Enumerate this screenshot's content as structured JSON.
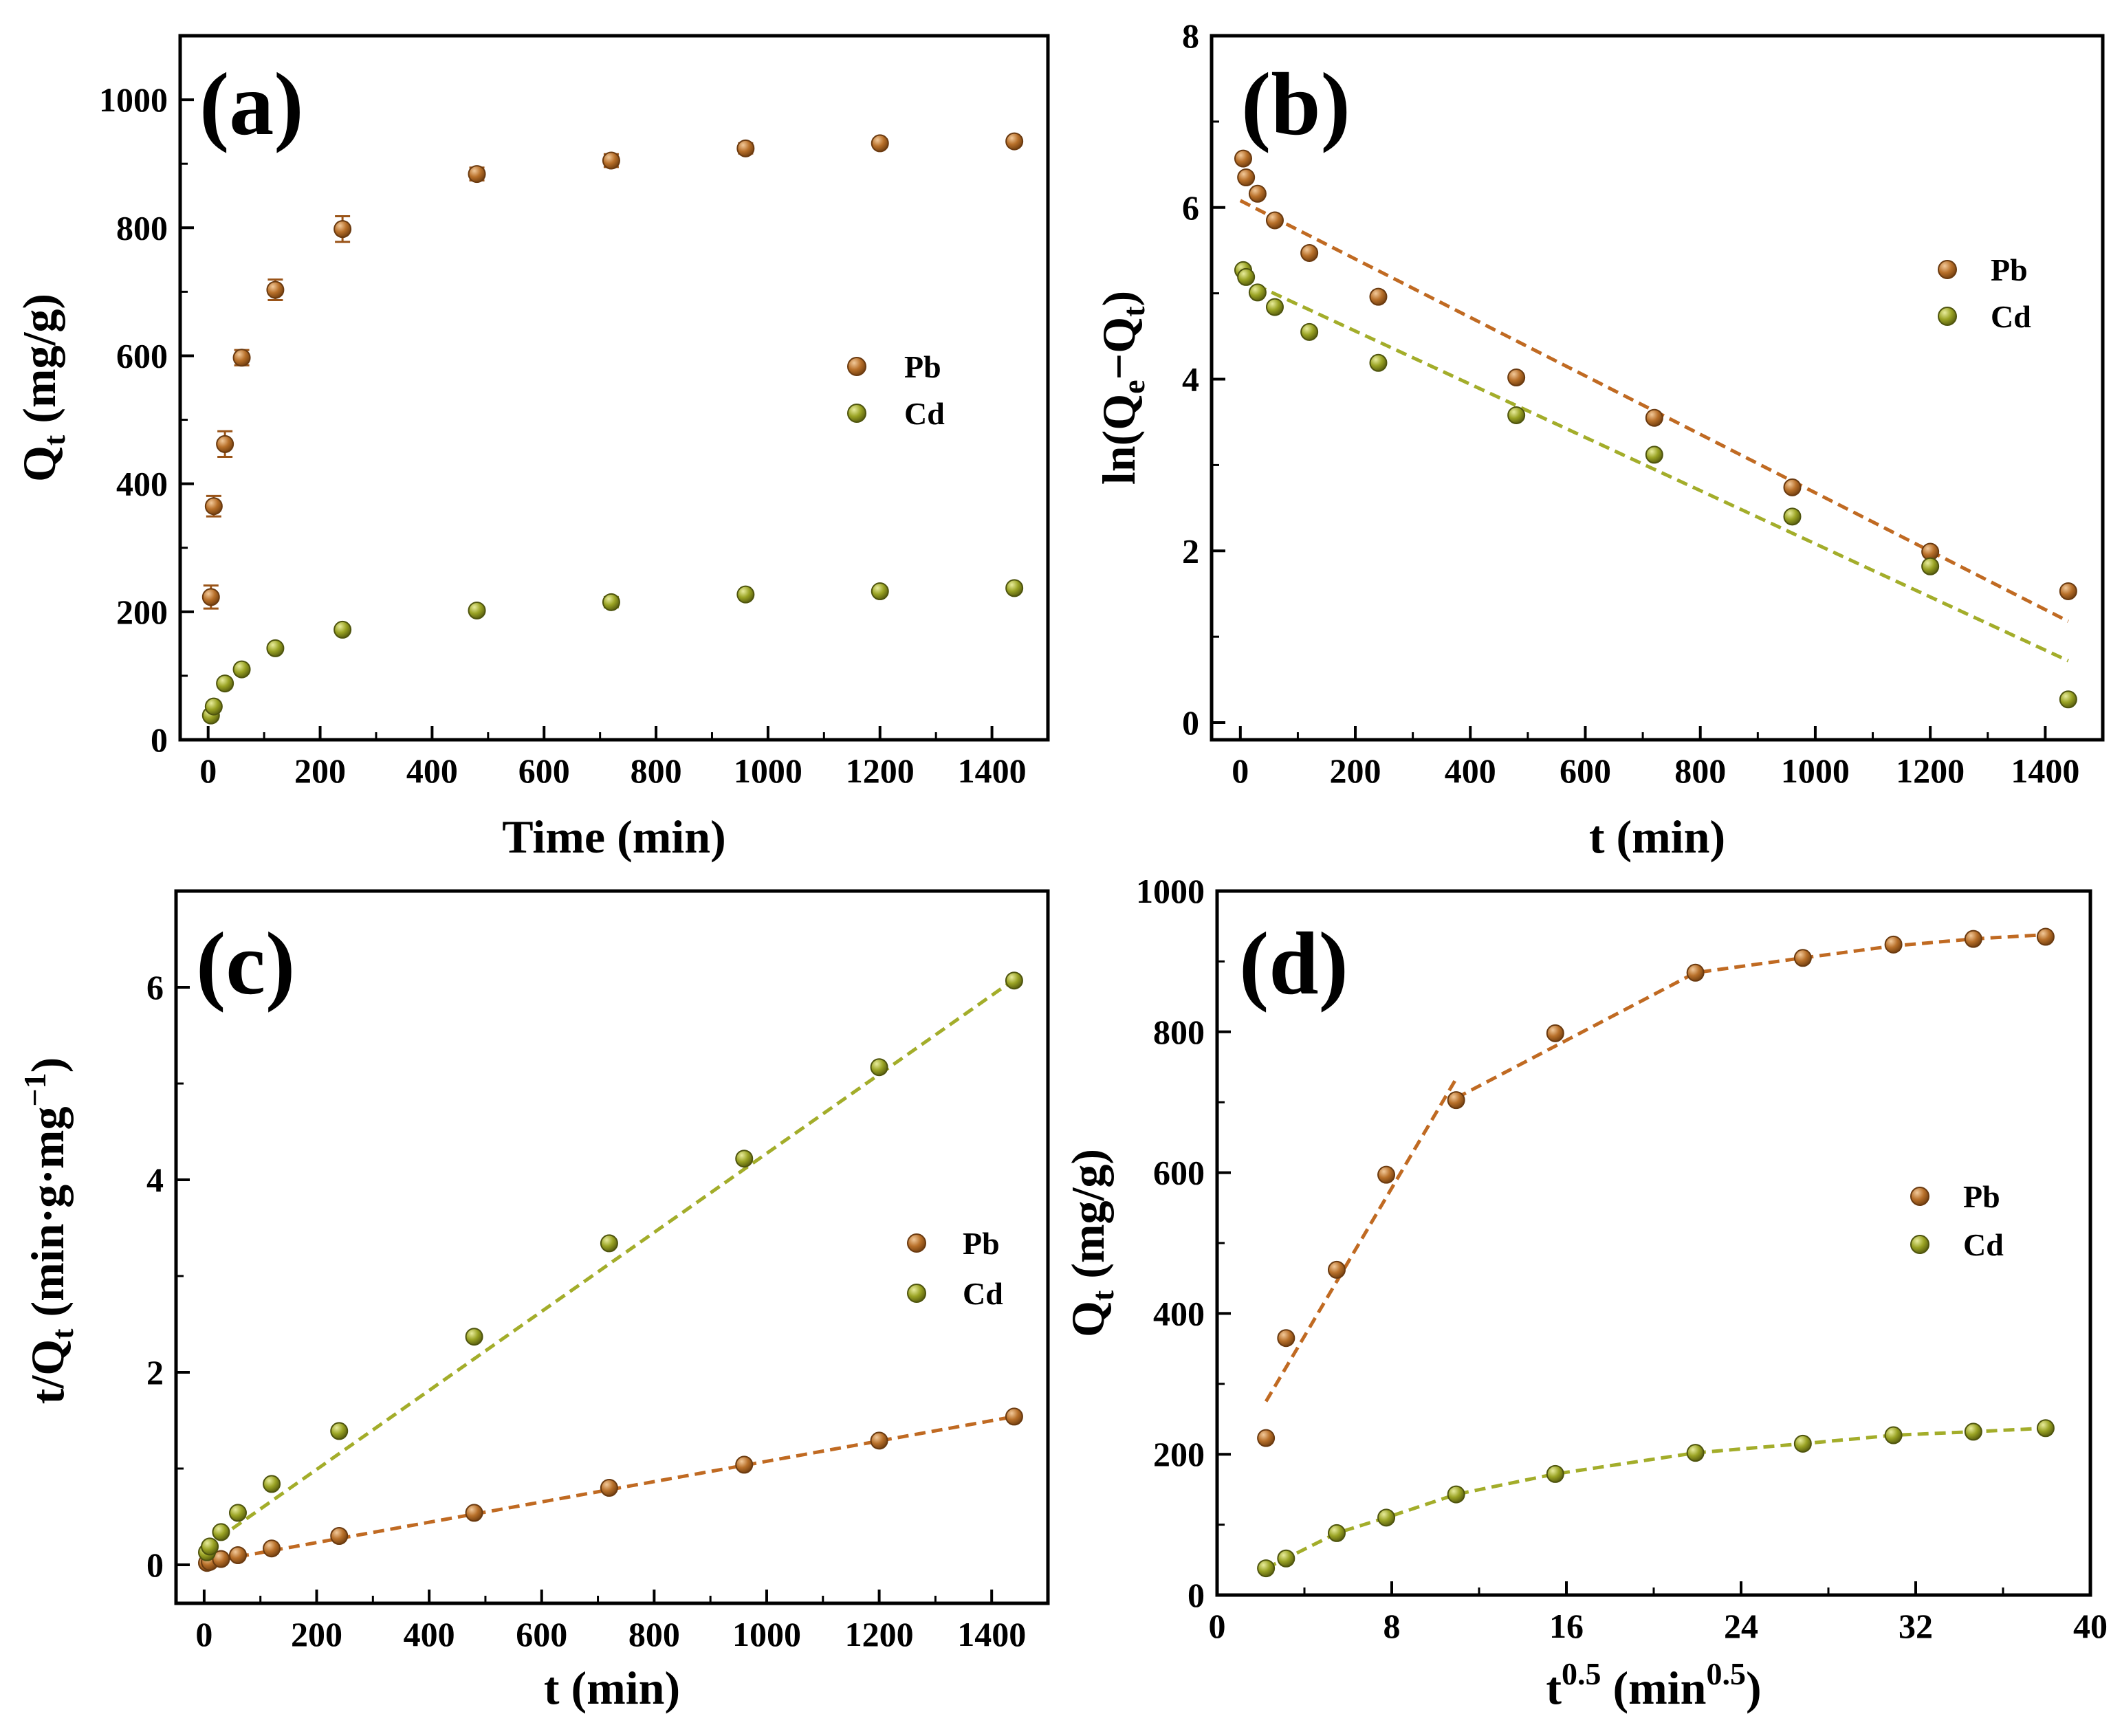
{
  "figure": {
    "colors": {
      "pb": "#b8702a",
      "cd": "#9aa324",
      "pb_line": "#c06a22",
      "cd_line": "#a3ad2a"
    },
    "legend": {
      "pb": "Pb",
      "cd": "Cd"
    }
  },
  "chart_data": [
    {
      "panel": "(a)",
      "type": "scatter",
      "xlabel": "Time (min)",
      "ylabel_main": "Q",
      "ylabel_sub": "t",
      "ylabel_rest": " (mg/g)",
      "xlim": [
        -50,
        1500
      ],
      "ylim": [
        0,
        1100
      ],
      "xticks": [
        0,
        200,
        400,
        600,
        800,
        1000,
        1200,
        1400
      ],
      "yticks": [
        0,
        200,
        400,
        600,
        800,
        1000
      ],
      "legend_position": "right-center",
      "series": [
        {
          "name": "Pb",
          "x": [
            5,
            10,
            30,
            60,
            120,
            240,
            480,
            720,
            960,
            1200,
            1440
          ],
          "y": [
            223,
            365,
            462,
            597,
            703,
            798,
            884,
            905,
            924,
            932,
            935
          ],
          "err": [
            18,
            16,
            20,
            12,
            16,
            20,
            10,
            10,
            8,
            6,
            6
          ]
        },
        {
          "name": "Cd",
          "x": [
            5,
            10,
            30,
            60,
            120,
            240,
            480,
            720,
            960,
            1200,
            1440
          ],
          "y": [
            38,
            52,
            88,
            110,
            143,
            172,
            202,
            215,
            227,
            232,
            237
          ],
          "err": [
            5,
            5,
            5,
            5,
            5,
            5,
            5,
            8,
            5,
            5,
            5
          ]
        }
      ]
    },
    {
      "panel": "(b)",
      "type": "scatter",
      "xlabel": "t (min)",
      "ylabel_main": "ln(Q",
      "ylabel_sub": "e",
      "ylabel_mid": "−Q",
      "ylabel_sub2": "t",
      "ylabel_rest": ")",
      "xlim": [
        -50,
        1500
      ],
      "ylim": [
        -0.2,
        8
      ],
      "xticks": [
        0,
        200,
        400,
        600,
        800,
        1000,
        1200,
        1400
      ],
      "yticks": [
        0,
        2,
        4,
        6,
        8
      ],
      "legend_position": "right-upper",
      "series": [
        {
          "name": "Pb",
          "x": [
            5,
            10,
            30,
            60,
            120,
            240,
            480,
            720,
            960,
            1200,
            1440
          ],
          "y": [
            6.57,
            6.35,
            6.16,
            5.85,
            5.47,
            4.96,
            4.02,
            3.55,
            2.74,
            1.99,
            1.53
          ],
          "fit": [
            [
              0,
              6.08
            ],
            [
              1440,
              1.18
            ]
          ]
        },
        {
          "name": "Cd",
          "x": [
            5,
            10,
            30,
            60,
            120,
            240,
            480,
            720,
            960,
            1200,
            1440
          ],
          "y": [
            5.27,
            5.19,
            5.01,
            4.84,
            4.55,
            4.19,
            3.58,
            3.12,
            2.4,
            1.82,
            0.27
          ],
          "fit": [
            [
              0,
              5.18
            ],
            [
              1440,
              0.72
            ]
          ]
        }
      ]
    },
    {
      "panel": "(c)",
      "type": "scatter",
      "xlabel": "t (min)",
      "ylabel_main": "t/Q",
      "ylabel_sub": "t",
      "ylabel_rest": " (min·g·mg",
      "ylabel_sup": "−1",
      "ylabel_end": ")",
      "xlim": [
        -50,
        1500
      ],
      "ylim": [
        -0.4,
        7
      ],
      "xticks": [
        0,
        200,
        400,
        600,
        800,
        1000,
        1200,
        1400
      ],
      "yticks": [
        0,
        2,
        4,
        6
      ],
      "legend_position": "right-center",
      "series": [
        {
          "name": "Pb",
          "x": [
            5,
            10,
            30,
            60,
            120,
            240,
            480,
            720,
            960,
            1200,
            1440
          ],
          "y": [
            0.02,
            0.03,
            0.06,
            0.1,
            0.17,
            0.3,
            0.54,
            0.8,
            1.04,
            1.29,
            1.54
          ],
          "fit": [
            [
              0,
              0.02
            ],
            [
              1440,
              1.54
            ]
          ]
        },
        {
          "name": "Cd",
          "x": [
            5,
            10,
            30,
            60,
            120,
            240,
            480,
            720,
            960,
            1200,
            1440
          ],
          "y": [
            0.13,
            0.19,
            0.34,
            0.54,
            0.84,
            1.39,
            2.37,
            3.34,
            4.22,
            5.17,
            6.07
          ],
          "fit": [
            [
              0,
              0.17
            ],
            [
              1440,
              6.08
            ]
          ]
        }
      ]
    },
    {
      "panel": "(d)",
      "type": "scatter",
      "xlabel_main": "t",
      "xlabel_sup": "0.5",
      "xlabel_rest": " (min",
      "xlabel_sup2": "0.5",
      "xlabel_end": ")",
      "ylabel_main": "Q",
      "ylabel_sub": "t",
      "ylabel_rest": " (mg/g)",
      "xlim": [
        0,
        40
      ],
      "ylim": [
        0,
        1000
      ],
      "xticks": [
        0,
        8,
        16,
        24,
        32,
        40
      ],
      "yticks": [
        0,
        200,
        400,
        600,
        800,
        1000
      ],
      "legend_position": "right-center",
      "series": [
        {
          "name": "Pb",
          "x": [
            2.24,
            3.16,
            5.48,
            7.75,
            10.95,
            15.49,
            21.91,
            26.83,
            30.98,
            34.64,
            37.95
          ],
          "y": [
            223,
            365,
            462,
            597,
            703,
            798,
            884,
            905,
            924,
            932,
            935
          ],
          "fit_segments": [
            [
              [
                2.24,
                275
              ],
              [
                11.0,
                736
              ]
            ],
            [
              [
                10.95,
                706
              ],
              [
                21.91,
                884
              ],
              [
                26.83,
                905
              ],
              [
                30.98,
                922
              ],
              [
                34.64,
                932
              ],
              [
                37.95,
                938
              ]
            ]
          ]
        },
        {
          "name": "Cd",
          "x": [
            2.24,
            3.16,
            5.48,
            7.75,
            10.95,
            15.49,
            21.91,
            26.83,
            30.98,
            34.64,
            37.95
          ],
          "y": [
            38,
            52,
            88,
            110,
            143,
            172,
            202,
            215,
            227,
            232,
            237
          ],
          "fit_segments": [
            [
              [
                2.24,
                38
              ],
              [
                3.16,
                52
              ],
              [
                5.48,
                88
              ],
              [
                7.75,
                110
              ],
              [
                10.95,
                143
              ],
              [
                15.49,
                172
              ],
              [
                21.91,
                202
              ],
              [
                26.83,
                215
              ],
              [
                30.98,
                227
              ],
              [
                34.64,
                232
              ],
              [
                37.95,
                237
              ]
            ]
          ]
        }
      ]
    }
  ]
}
